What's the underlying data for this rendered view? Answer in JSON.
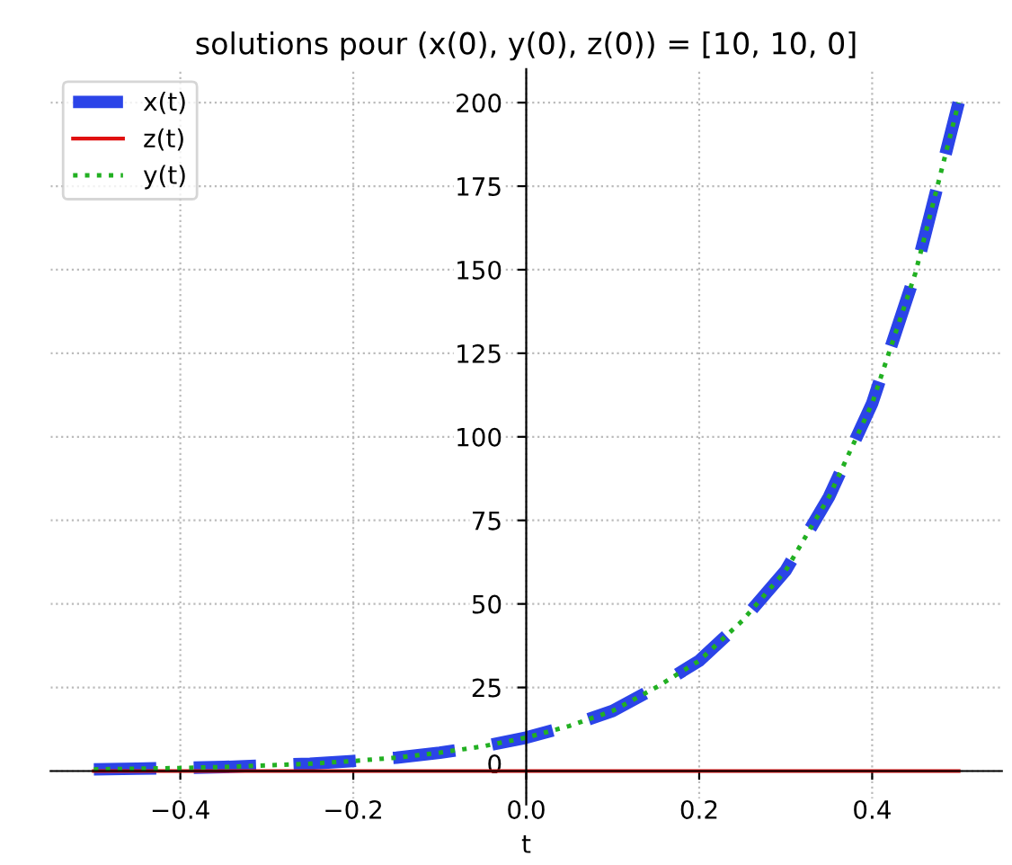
{
  "chart_data": {
    "type": "line",
    "title": "solutions pour (x(0), y(0), z(0)) = [10, 10, 0]",
    "xlabel": "t",
    "x": [
      -0.5,
      -0.45,
      -0.4,
      -0.35,
      -0.3,
      -0.25,
      -0.2,
      -0.15,
      -0.1,
      -0.05,
      0,
      0.05,
      0.1,
      0.15,
      0.2,
      0.25,
      0.3,
      0.35,
      0.4,
      0.45,
      0.5
    ],
    "series": [
      {
        "name": "x(t)",
        "color": "#2b44e8",
        "line_style": "dashed",
        "values": [
          0.5,
          0.7,
          0.9,
          1.2,
          1.7,
          2.2,
          3,
          4,
          5.5,
          7.4,
          10,
          13.5,
          18,
          25,
          33,
          45,
          60,
          82,
          110,
          149,
          200
        ]
      },
      {
        "name": "z(t)",
        "color": "#e01010",
        "line_style": "solid",
        "values": [
          0,
          0,
          0,
          0,
          0,
          0,
          0,
          0,
          0,
          0,
          0,
          0,
          0,
          0,
          0,
          0,
          0,
          0,
          0,
          0,
          0
        ]
      },
      {
        "name": "y(t)",
        "color": "#22b022",
        "line_style": "dotted",
        "values": [
          0.5,
          0.7,
          0.9,
          1.2,
          1.7,
          2.2,
          3,
          4,
          5.5,
          7.4,
          10,
          13.5,
          18,
          25,
          33,
          45,
          60,
          82,
          110,
          149,
          200
        ]
      }
    ],
    "xlim": [
      -0.55,
      0.55
    ],
    "xticks": [
      {
        "value": -0.4,
        "label": "−0.4"
      },
      {
        "value": -0.2,
        "label": "−0.2"
      },
      {
        "value": 0,
        "label": "0.0"
      },
      0.2,
      0.4
    ],
    "ylim": [
      -10,
      210
    ],
    "yticks": [
      0,
      25,
      50,
      75,
      100,
      125,
      150,
      175,
      200
    ],
    "grid": true,
    "legend": "top left",
    "marker": "none"
  }
}
